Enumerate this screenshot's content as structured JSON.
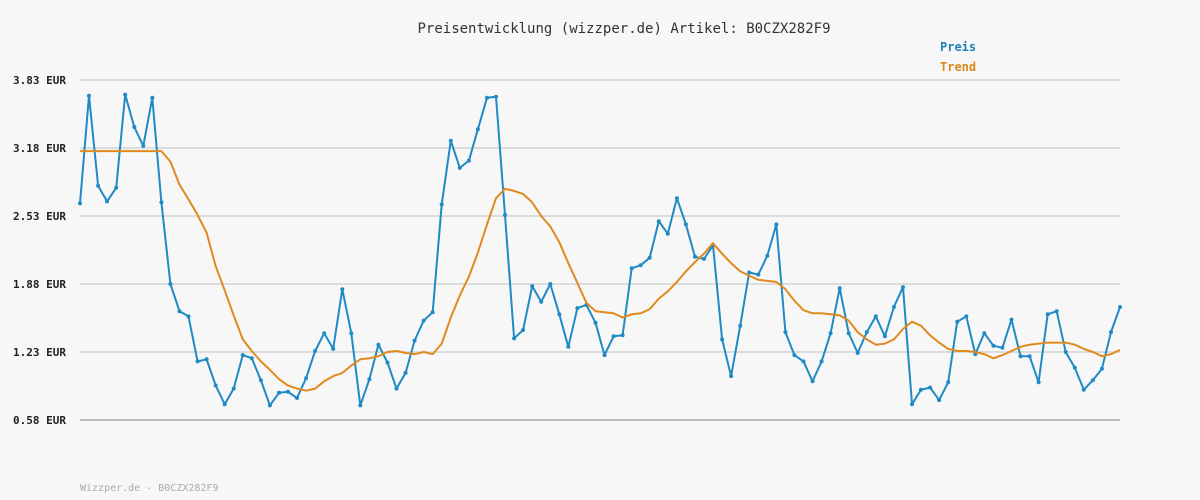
{
  "chart_data": {
    "type": "line",
    "title": "Preisentwicklung (wizzper.de) Artikel: B0CZX282F9",
    "footer": "Wizzper.de - B0CZX282F9",
    "y_tick_labels": [
      "3.83 EUR",
      "3.18 EUR",
      "2.53 EUR",
      "1.88 EUR",
      "1.23 EUR",
      "0.58 EUR"
    ],
    "y_ticks": [
      3.83,
      3.18,
      2.53,
      1.88,
      1.23,
      0.58
    ],
    "ylim": [
      0.58,
      3.83
    ],
    "grid": true,
    "legend_position": "top-right",
    "series": [
      {
        "name": "Preis",
        "color": "#1f8ac4",
        "markers": true,
        "values": [
          2.65,
          3.68,
          2.82,
          2.67,
          2.8,
          3.69,
          3.38,
          3.2,
          3.66,
          2.66,
          1.88,
          1.62,
          1.57,
          1.14,
          1.16,
          0.91,
          0.73,
          0.88,
          1.2,
          1.17,
          0.96,
          0.72,
          0.84,
          0.85,
          0.79,
          0.98,
          1.24,
          1.41,
          1.26,
          1.83,
          1.41,
          0.72,
          0.97,
          1.3,
          1.13,
          0.88,
          1.03,
          1.34,
          1.53,
          1.61,
          2.64,
          3.25,
          2.99,
          3.06,
          3.36,
          3.66,
          3.67,
          2.54,
          1.36,
          1.44,
          1.86,
          1.71,
          1.88,
          1.59,
          1.28,
          1.65,
          1.68,
          1.51,
          1.2,
          1.38,
          1.39,
          2.03,
          2.06,
          2.13,
          2.48,
          2.36,
          2.7,
          2.45,
          2.14,
          2.12,
          2.25,
          1.35,
          1.0,
          1.48,
          1.99,
          1.97,
          2.15,
          2.45,
          1.42,
          1.2,
          1.14,
          0.95,
          1.14,
          1.41,
          1.84,
          1.41,
          1.22,
          1.42,
          1.57,
          1.38,
          1.66,
          1.85,
          0.73,
          0.87,
          0.89,
          0.77,
          0.94,
          1.52,
          1.57,
          1.21,
          1.41,
          1.29,
          1.27,
          1.54,
          1.19,
          1.19,
          0.94,
          1.59,
          1.62,
          1.23,
          1.08,
          0.87,
          0.96,
          1.07,
          1.42,
          1.66
        ]
      },
      {
        "name": "Trend",
        "color": "#e08a1e",
        "markers": false,
        "values": [
          3.15,
          3.15,
          3.15,
          3.15,
          3.15,
          3.15,
          3.15,
          3.15,
          3.15,
          3.15,
          3.05,
          2.83,
          2.69,
          2.54,
          2.37,
          2.05,
          1.82,
          1.58,
          1.35,
          1.24,
          1.14,
          1.06,
          0.97,
          0.91,
          0.88,
          0.86,
          0.88,
          0.95,
          1.0,
          1.03,
          1.1,
          1.16,
          1.17,
          1.19,
          1.23,
          1.24,
          1.22,
          1.21,
          1.23,
          1.21,
          1.31,
          1.56,
          1.77,
          1.95,
          2.18,
          2.45,
          2.7,
          2.79,
          2.77,
          2.74,
          2.66,
          2.53,
          2.43,
          2.28,
          2.08,
          1.89,
          1.7,
          1.62,
          1.61,
          1.6,
          1.56,
          1.59,
          1.6,
          1.64,
          1.74,
          1.81,
          1.9,
          2.0,
          2.09,
          2.17,
          2.27,
          2.17,
          2.08,
          2.0,
          1.96,
          1.92,
          1.91,
          1.9,
          1.83,
          1.72,
          1.63,
          1.6,
          1.6,
          1.59,
          1.58,
          1.53,
          1.42,
          1.35,
          1.3,
          1.31,
          1.35,
          1.45,
          1.52,
          1.48,
          1.39,
          1.32,
          1.26,
          1.24,
          1.24,
          1.23,
          1.21,
          1.17,
          1.2,
          1.24,
          1.28,
          1.3,
          1.31,
          1.32,
          1.32,
          1.32,
          1.3,
          1.26,
          1.23,
          1.19,
          1.21,
          1.25
        ]
      }
    ]
  }
}
